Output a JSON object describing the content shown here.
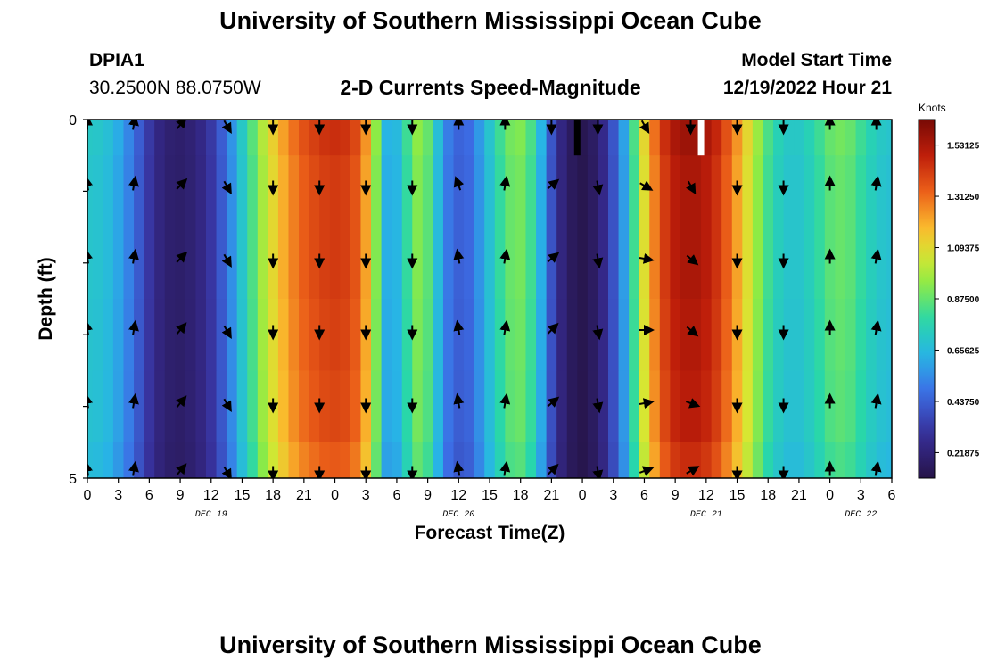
{
  "header": {
    "title": "University of Southern Mississippi Ocean Cube",
    "station": "DPIA1",
    "coords": "30.2500N  88.0750W",
    "chart_title": "2-D Currents Speed-Magnitude",
    "model_start_label": "Model Start Time",
    "model_start_value": "12/19/2022 Hour 21"
  },
  "footer": {
    "title": "University of Southern Mississippi Ocean Cube"
  },
  "chart_data": {
    "type": "heatmap",
    "title": "2-D Currents Speed-Magnitude",
    "xlabel": "Forecast Time(Z)",
    "ylabel": "Depth (ft)",
    "colorbar_label": "Knots",
    "colorbar_ticks": [
      "1.53125",
      "1.31250",
      "1.09375",
      "0.87500",
      "0.65625",
      "0.43750",
      "0.21875"
    ],
    "colorbar_values": [
      1.53125,
      1.3125,
      1.09375,
      0.875,
      0.65625,
      0.4375,
      0.21875
    ],
    "crange": [
      0.11,
      1.64
    ],
    "x_tick_labels": [
      "0",
      "3",
      "6",
      "9",
      "12",
      "15",
      "18",
      "21",
      "0",
      "3",
      "6",
      "9",
      "12",
      "15",
      "18",
      "21",
      "0",
      "3",
      "6",
      "9",
      "12",
      "15",
      "18",
      "21",
      "0",
      "3",
      "6"
    ],
    "x_hours": [
      0,
      3,
      6,
      9,
      12,
      15,
      18,
      21,
      24,
      27,
      30,
      33,
      36,
      39,
      42,
      45,
      48,
      51,
      54,
      57,
      60,
      63,
      66,
      69,
      72,
      75,
      78
    ],
    "xlim": [
      0,
      78
    ],
    "date_labels": [
      {
        "label": "DEC 19",
        "hour": 12
      },
      {
        "label": "DEC 20",
        "hour": 36
      },
      {
        "label": "DEC 21",
        "hour": 60
      },
      {
        "label": "DEC 22",
        "hour": 75
      }
    ],
    "y_tick_labels": [
      "0",
      "5"
    ],
    "ylim": [
      0,
      5
    ],
    "depth_levels": [
      0,
      1,
      2,
      3,
      4,
      5
    ],
    "speed_by_hour": [
      0.7,
      0.69,
      0.66,
      0.6,
      0.52,
      0.42,
      0.32,
      0.24,
      0.2,
      0.19,
      0.21,
      0.25,
      0.32,
      0.42,
      0.55,
      0.7,
      0.84,
      0.98,
      1.1,
      1.2,
      1.28,
      1.34,
      1.38,
      1.41,
      1.42,
      1.41,
      1.36,
      1.22,
      0.92,
      0.62,
      0.64,
      0.8,
      0.92,
      0.86,
      0.66,
      0.5,
      0.44,
      0.46,
      0.56,
      0.68,
      0.8,
      0.88,
      0.9,
      0.82,
      0.62,
      0.4,
      0.24,
      0.16,
      0.13,
      0.17,
      0.26,
      0.4,
      0.58,
      0.82,
      1.08,
      1.28,
      1.42,
      1.5,
      1.53,
      1.53,
      1.5,
      1.44,
      1.34,
      1.22,
      1.08,
      0.94,
      0.82,
      0.74,
      0.7,
      0.7,
      0.74,
      0.8,
      0.86,
      0.88,
      0.86,
      0.8,
      0.74,
      0.7,
      0.68
    ],
    "depth_factor": [
      1.02,
      1.0,
      1.0,
      0.99,
      0.98,
      0.95
    ],
    "gaps": [
      {
        "hour": 47.5,
        "depth": [
          0,
          0.5
        ],
        "color": "#000000"
      },
      {
        "hour": 59.5,
        "depth": [
          0,
          0.5
        ],
        "color": "#ffffff"
      }
    ],
    "vector_hours": [
      0,
      4.5,
      9,
      13.5,
      18,
      22.5,
      27,
      31.5,
      36,
      40.5,
      45,
      49.5,
      54,
      58.5,
      63,
      67.5,
      72,
      76.5
    ],
    "vector_depths": [
      0,
      1,
      2,
      3,
      4,
      5
    ],
    "vector_dirs_deg": [
      [
        0,
        10,
        40,
        150,
        180,
        180,
        180,
        180,
        0,
        0,
        180,
        180,
        150,
        180,
        180,
        180,
        0,
        0
      ],
      [
        350,
        10,
        45,
        150,
        180,
        180,
        180,
        180,
        340,
        10,
        50,
        170,
        120,
        150,
        180,
        180,
        0,
        10
      ],
      [
        350,
        10,
        45,
        150,
        180,
        180,
        180,
        180,
        350,
        10,
        50,
        170,
        100,
        130,
        180,
        180,
        0,
        10
      ],
      [
        350,
        10,
        40,
        150,
        180,
        180,
        180,
        180,
        350,
        10,
        45,
        170,
        90,
        130,
        180,
        180,
        0,
        10
      ],
      [
        350,
        10,
        40,
        150,
        180,
        180,
        180,
        180,
        350,
        10,
        50,
        170,
        80,
        110,
        180,
        180,
        0,
        10
      ],
      [
        350,
        10,
        40,
        150,
        180,
        180,
        180,
        180,
        350,
        10,
        45,
        170,
        70,
        60,
        180,
        180,
        0,
        10
      ]
    ]
  }
}
